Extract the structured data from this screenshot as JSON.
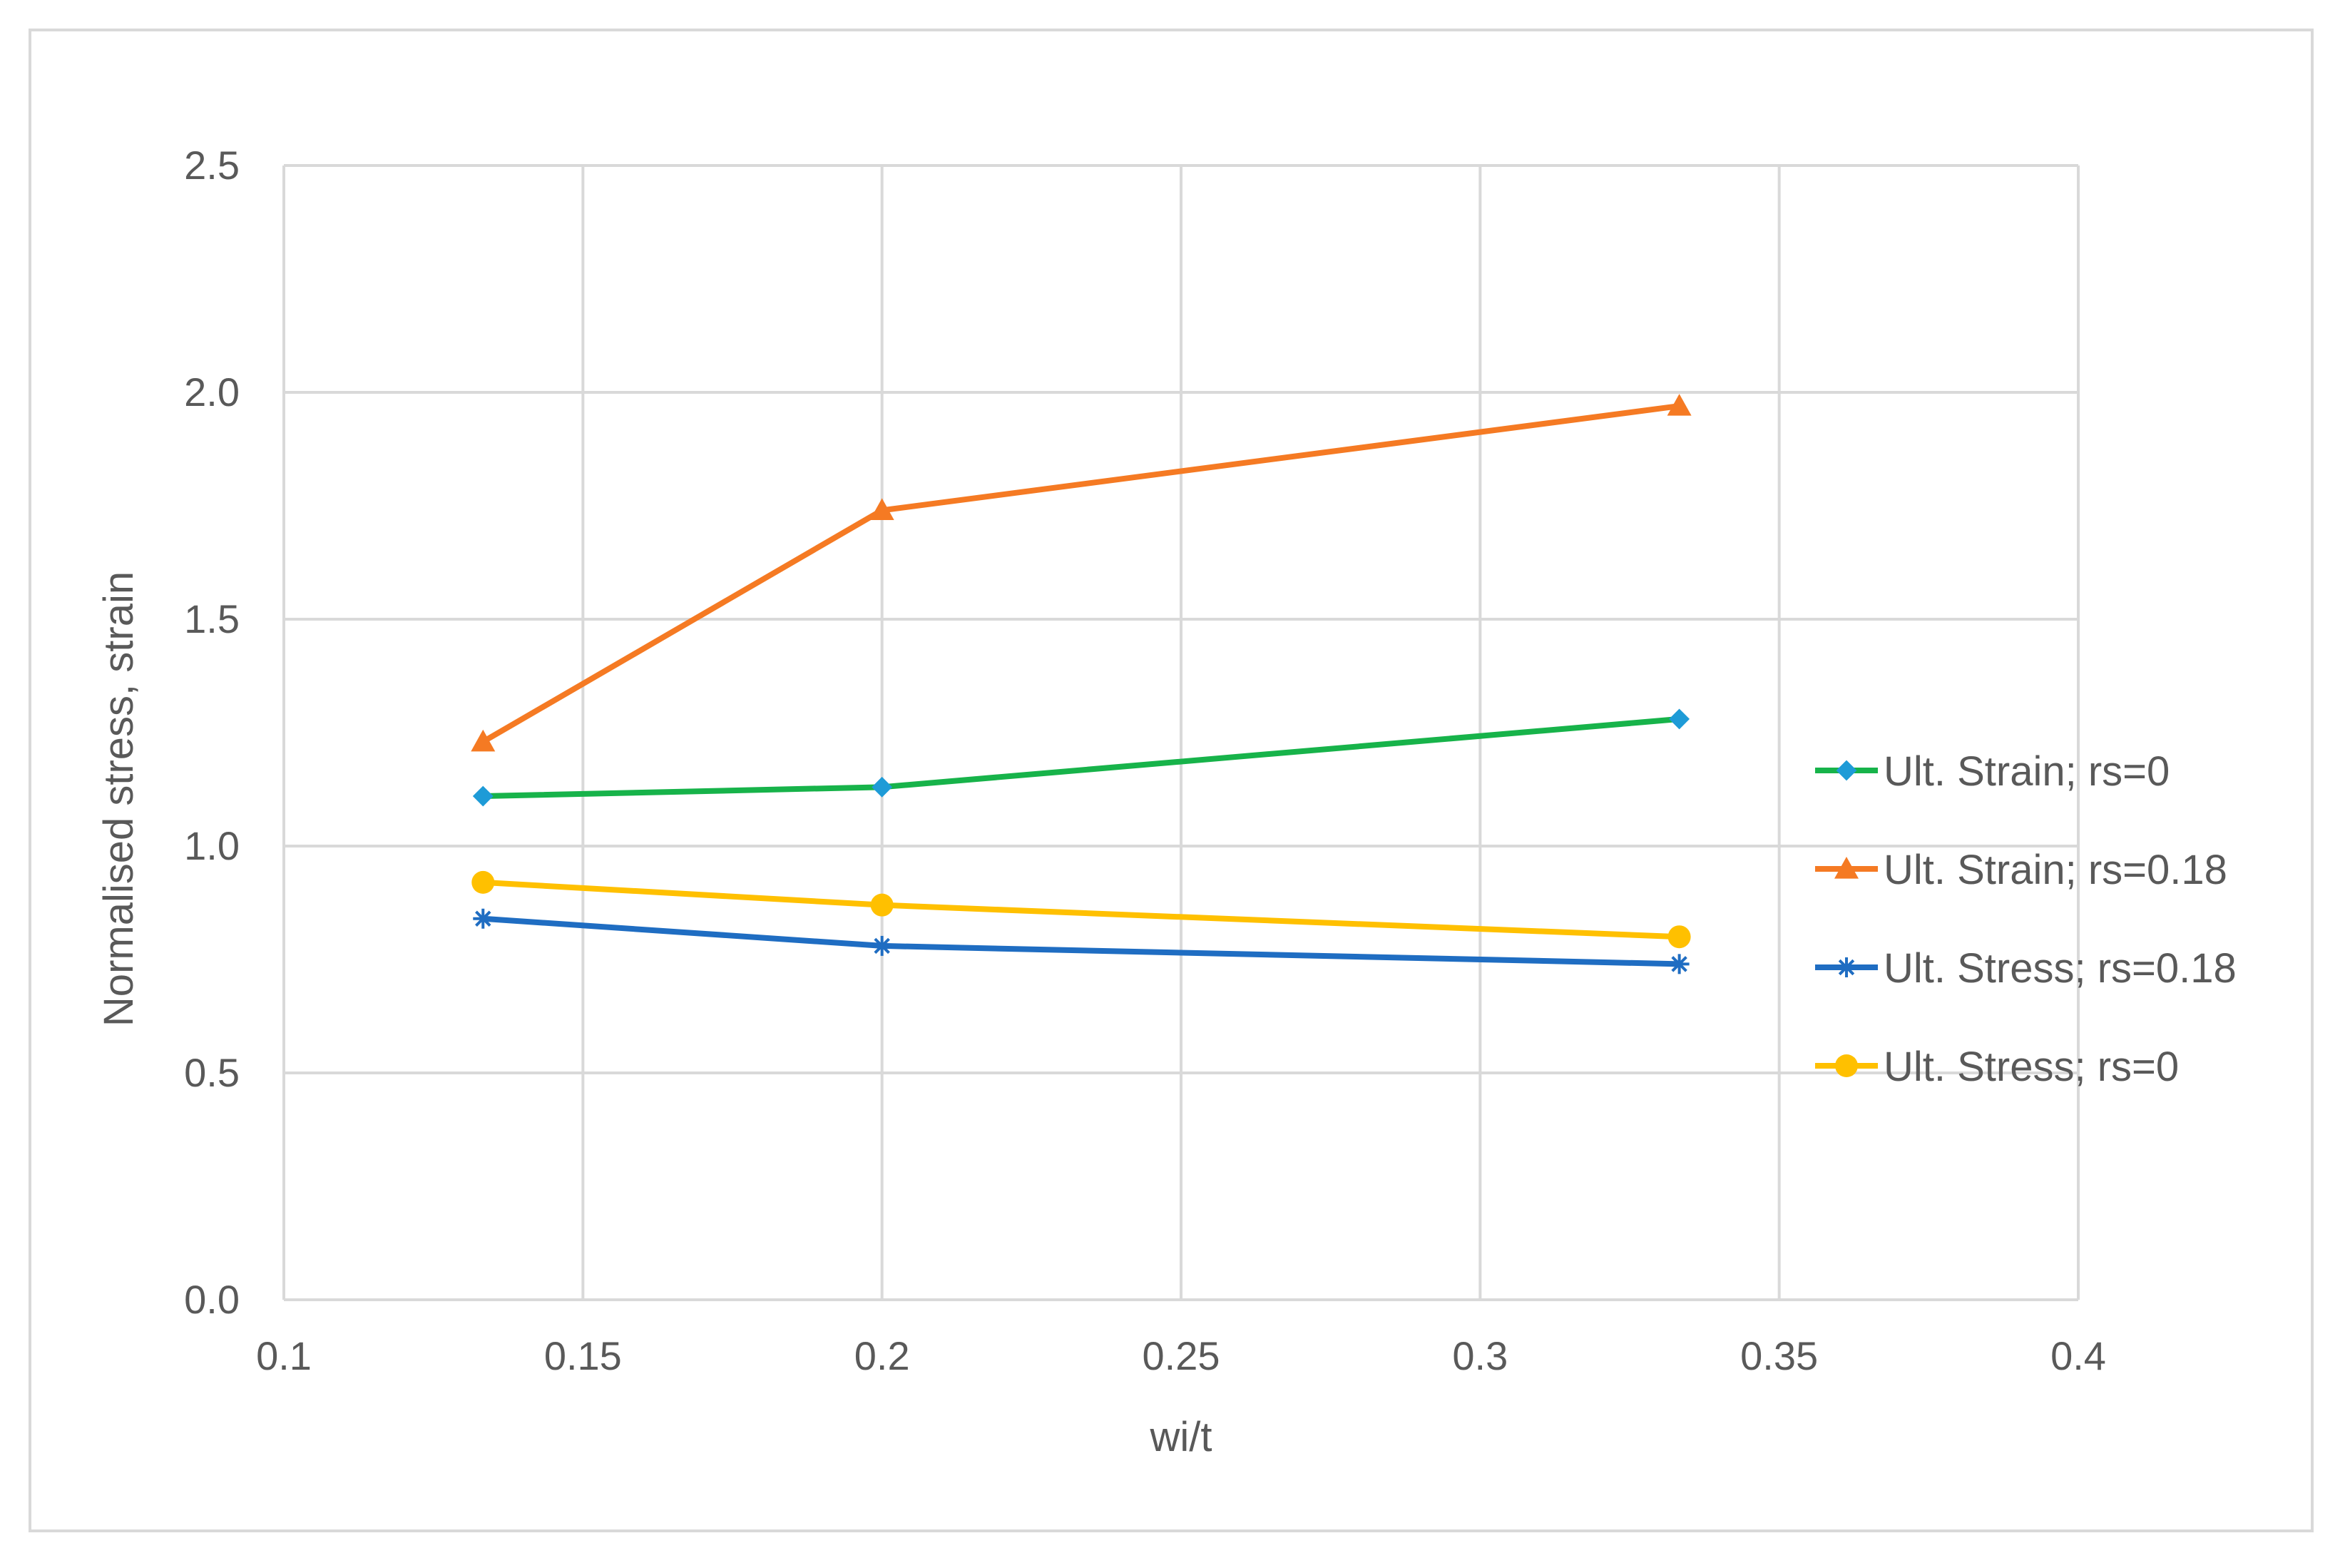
{
  "chart_data": {
    "type": "line",
    "title": "",
    "xlabel": "wi/t",
    "ylabel": "Normalised stress, strain",
    "xlim": [
      0.1,
      0.4
    ],
    "ylim": [
      0.0,
      2.5
    ],
    "xticks": [
      0.1,
      0.15,
      0.2,
      0.25,
      0.3,
      0.35,
      0.4
    ],
    "yticks": [
      0.0,
      0.5,
      1.0,
      1.5,
      2.0,
      2.5
    ],
    "xtick_labels": [
      "0.1",
      "0.15",
      "0.2",
      "0.25",
      "0.3",
      "0.35",
      "0.4"
    ],
    "ytick_labels": [
      "0.0",
      "0.5",
      "1.0",
      "1.5",
      "2.0",
      "2.5"
    ],
    "grid": true,
    "legend_position": "right",
    "x": [
      0.1333,
      0.2,
      0.3333
    ],
    "series": [
      {
        "name": "Ult. Strain; rs=0",
        "values": [
          1.11,
          1.13,
          1.28
        ],
        "color": "#17b34a",
        "marker": "diamond"
      },
      {
        "name": "Ult. Strain; rs=0.18",
        "values": [
          1.23,
          1.74,
          1.97
        ],
        "color": "#f57a23",
        "marker": "triangle"
      },
      {
        "name": "Ult. Stress; rs=0.18",
        "values": [
          0.84,
          0.78,
          0.74
        ],
        "color": "#1f6dc2",
        "marker": "asterisk"
      },
      {
        "name": "Ult. Stress; rs=0",
        "values": [
          0.92,
          0.87,
          0.8
        ],
        "color": "#ffc000",
        "marker": "circle"
      }
    ],
    "marker_colors": {
      "diamond": "#1e9bd7"
    },
    "colors": {
      "grid": "#d9d9d9",
      "axis_text": "#595959",
      "border": "#d9d9d9"
    }
  }
}
